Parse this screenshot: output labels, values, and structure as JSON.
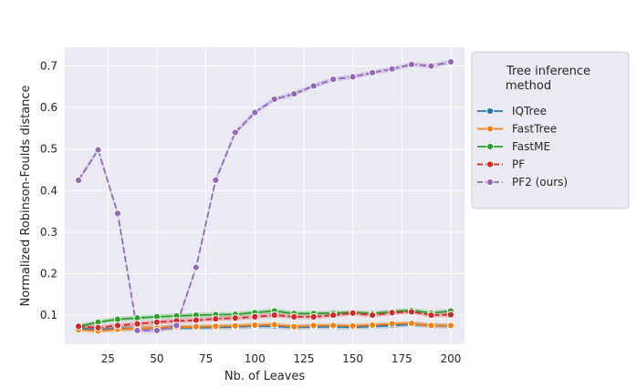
{
  "chart_data": {
    "type": "line",
    "xlabel": "Nb. of Leaves",
    "ylabel": "Normalized Robinson-Foulds distance",
    "xlim": [
      3,
      207
    ],
    "ylim": [
      0.03,
      0.745
    ],
    "x_ticks": [
      25,
      50,
      75,
      100,
      125,
      150,
      175,
      200
    ],
    "y_ticks": [
      0.1,
      0.2,
      0.3,
      0.4,
      0.5,
      0.6,
      0.7
    ],
    "x": [
      10,
      20,
      30,
      40,
      50,
      60,
      70,
      80,
      90,
      100,
      110,
      120,
      130,
      140,
      150,
      160,
      170,
      180,
      190,
      200
    ],
    "grid": true,
    "legend": {
      "title_lines": [
        "Tree inference",
        "method"
      ],
      "placement": "right-outside"
    },
    "series": [
      {
        "name": "IQTree",
        "color": "#1f77b4",
        "dashed": false,
        "values": [
          0.068,
          0.065,
          0.068,
          0.068,
          0.069,
          0.07,
          0.07,
          0.071,
          0.072,
          0.074,
          0.073,
          0.071,
          0.072,
          0.072,
          0.071,
          0.073,
          0.075,
          0.078,
          0.075,
          0.074
        ]
      },
      {
        "name": "FastTree",
        "color": "#ff7f0e",
        "dashed": false,
        "values": [
          0.065,
          0.062,
          0.066,
          0.068,
          0.07,
          0.071,
          0.072,
          0.073,
          0.074,
          0.076,
          0.077,
          0.072,
          0.075,
          0.075,
          0.074,
          0.076,
          0.079,
          0.08,
          0.075,
          0.075
        ]
      },
      {
        "name": "FastME",
        "color": "#2ca02c",
        "dashed": false,
        "values": [
          0.073,
          0.083,
          0.09,
          0.093,
          0.096,
          0.098,
          0.1,
          0.101,
          0.102,
          0.106,
          0.11,
          0.104,
          0.104,
          0.105,
          0.106,
          0.104,
          0.108,
          0.112,
          0.105,
          0.11
        ]
      },
      {
        "name": "PF",
        "color": "#d62728",
        "dashed": true,
        "values": [
          0.073,
          0.07,
          0.075,
          0.079,
          0.083,
          0.086,
          0.088,
          0.091,
          0.093,
          0.096,
          0.1,
          0.096,
          0.096,
          0.1,
          0.105,
          0.1,
          0.106,
          0.108,
          0.1,
          0.101
        ]
      },
      {
        "name": "PF2 (ours)",
        "color": "#9467bd",
        "dashed": true,
        "values": [
          0.425,
          0.498,
          0.345,
          0.063,
          0.063,
          0.075,
          0.215,
          0.425,
          0.54,
          0.588,
          0.62,
          0.633,
          0.652,
          0.668,
          0.674,
          0.684,
          0.693,
          0.704,
          0.7,
          0.71
        ]
      }
    ]
  }
}
